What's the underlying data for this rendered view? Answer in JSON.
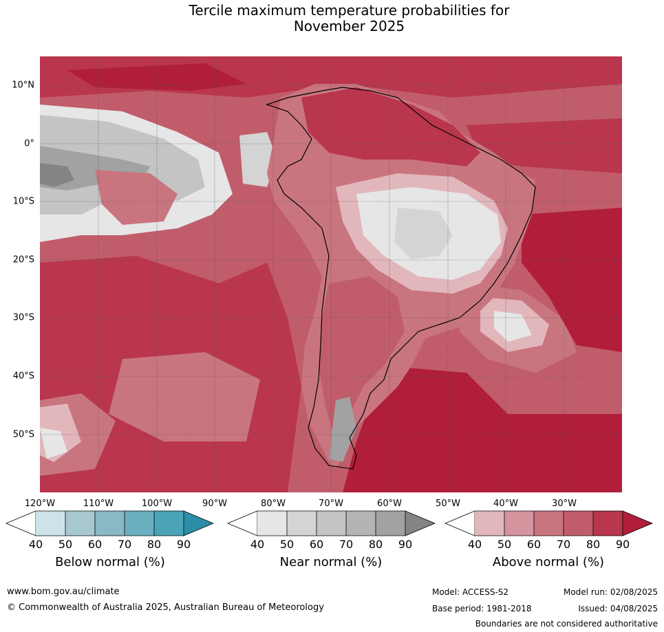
{
  "title_line1": "Tercile maximum temperature probabilities for",
  "title_line2": "November 2025",
  "lat_labels": [
    "10°N",
    "0°",
    "10°S",
    "20°S",
    "30°S",
    "40°S",
    "50°S"
  ],
  "lon_labels": [
    "120°W",
    "110°W",
    "100°W",
    "90°W",
    "80°W",
    "70°W",
    "60°W",
    "50°W",
    "40°W",
    "30°W"
  ],
  "legends": [
    {
      "title": "Below normal (%)",
      "ticks": [
        "40",
        "50",
        "60",
        "70",
        "80",
        "90"
      ],
      "colors": [
        "#cde3e9",
        "#a7c8d0",
        "#8ab8c5",
        "#6aafc0",
        "#4aa3b6",
        "#2b8fa6"
      ]
    },
    {
      "title": "Near normal (%)",
      "ticks": [
        "40",
        "50",
        "60",
        "70",
        "80",
        "90"
      ],
      "colors": [
        "#e6e6e6",
        "#d4d4d4",
        "#c4c4c4",
        "#b4b4b4",
        "#a2a2a2",
        "#848484"
      ]
    },
    {
      "title": "Above normal (%)",
      "ticks": [
        "40",
        "50",
        "60",
        "70",
        "80",
        "90"
      ],
      "colors": [
        "#e2b7bc",
        "#d5959f",
        "#c97580",
        "#c15d6b",
        "#b9364c",
        "#b01e3a"
      ]
    }
  ],
  "footer": {
    "website": "www.bom.gov.au/climate",
    "copyright": "© Commonwealth of Australia 2025, Australian Bureau of Meteorology",
    "model": "Model: ACCESS-S2",
    "base_period": "Base period: 1981-2018",
    "model_run": "Model run: 02/08/2025",
    "issued": "Issued: 04/08/2025",
    "disclaimer": "Boundaries are not considered authoritative"
  },
  "colors": {
    "above_60": "#c97580",
    "above_70": "#c15d6b",
    "above_80": "#b9364c",
    "above_90": "#b01e3a",
    "near_40": "#e6e6e6",
    "near_50": "#d4d4d4",
    "near_60": "#c4c4c4",
    "near_70": "#b4b4b4",
    "near_80": "#a2a2a2",
    "near_90": "#848484"
  }
}
